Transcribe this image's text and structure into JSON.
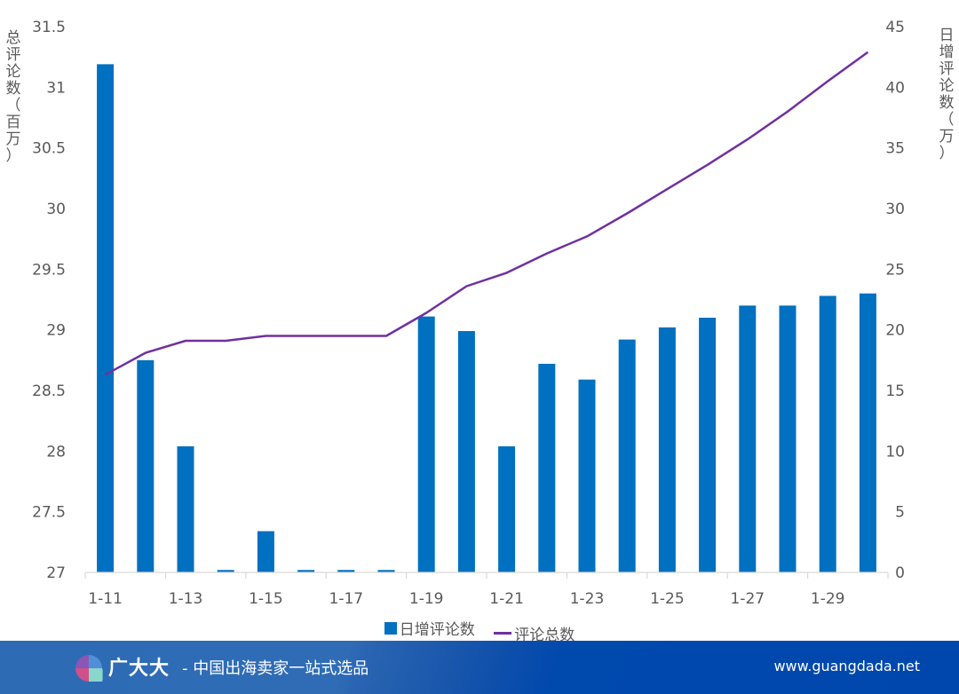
{
  "chart_data": {
    "type": "bar+line",
    "title": "",
    "categories": [
      "1-11",
      "1-12",
      "1-13",
      "1-14",
      "1-15",
      "1-16",
      "1-17",
      "1-18",
      "1-19",
      "1-20",
      "1-21",
      "1-22",
      "1-23",
      "1-24",
      "1-25",
      "1-26",
      "1-27",
      "1-28",
      "1-29",
      "1-30"
    ],
    "x_tick_labels": [
      "1-11",
      "1-13",
      "1-15",
      "1-17",
      "1-19",
      "1-21",
      "1-23",
      "1-25",
      "1-27",
      "1-29"
    ],
    "series": [
      {
        "name": "日增评论数",
        "type": "bar",
        "axis": "right",
        "color": "#0070c0",
        "values": [
          41.9,
          17.5,
          10.4,
          0.2,
          3.4,
          0.2,
          0.2,
          0.2,
          21.1,
          19.9,
          10.4,
          17.2,
          15.9,
          19.2,
          20.2,
          21.0,
          22.0,
          22.0,
          22.8,
          23.0
        ]
      },
      {
        "name": "评论总数",
        "type": "line",
        "axis": "left",
        "color": "#7030a0",
        "values": [
          28.63,
          28.81,
          28.91,
          28.91,
          28.95,
          28.95,
          28.95,
          28.95,
          29.14,
          29.36,
          29.47,
          29.63,
          29.77,
          29.96,
          30.16,
          30.36,
          30.57,
          30.8,
          31.05,
          31.29
        ]
      }
    ],
    "y_left": {
      "label": "总评论数（百万）",
      "ylim": [
        27,
        31.5
      ],
      "ticks": [
        "27",
        "27.5",
        "28",
        "28.5",
        "29",
        "29.5",
        "30",
        "30.5",
        "31",
        "31.5"
      ]
    },
    "y_right": {
      "label": "日增评论数（万）",
      "ylim": [
        0,
        45
      ],
      "ticks": [
        "0",
        "5",
        "10",
        "15",
        "20",
        "25",
        "30",
        "35",
        "40",
        "45"
      ]
    },
    "grid": false,
    "legend_position": "bottom"
  },
  "legend": {
    "bar_label": "日增评论数",
    "line_label": "评论总数"
  },
  "footer": {
    "brand": "广大大",
    "slogan": "- 中国出海卖家一站式选品",
    "website": "www.guangdada.net"
  }
}
